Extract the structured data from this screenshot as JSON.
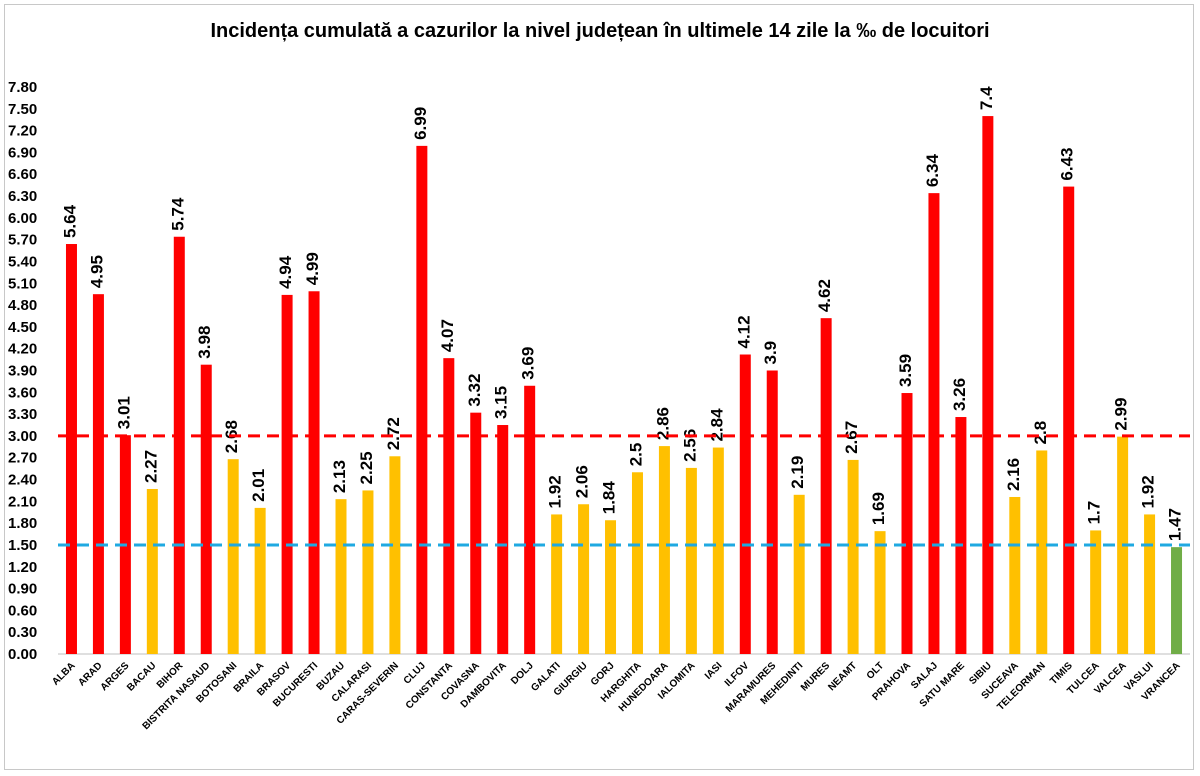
{
  "chart_data": {
    "type": "bar",
    "title": "Incidența cumulată a cazurilor la nivel județean în ultimele 14 zile la ‰ de locuitori",
    "xlabel": "",
    "ylabel": "",
    "ylim": [
      0,
      7.8
    ],
    "yticks": [
      "0.00",
      "0.30",
      "0.60",
      "0.90",
      "1.20",
      "1.50",
      "1.80",
      "2.10",
      "2.40",
      "2.70",
      "3.00",
      "3.30",
      "3.60",
      "3.90",
      "4.20",
      "4.50",
      "4.80",
      "5.10",
      "5.40",
      "5.70",
      "6.00",
      "6.30",
      "6.60",
      "6.90",
      "7.20",
      "7.50",
      "7.80"
    ],
    "categories": [
      "ALBA",
      "ARAD",
      "ARGES",
      "BACAU",
      "BIHOR",
      "BISTRITA NASAUD",
      "BOTOSANI",
      "BRAILA",
      "BRASOV",
      "BUCURESTI",
      "BUZAU",
      "CALARASI",
      "CARAS-SEVERIN",
      "CLUJ",
      "CONSTANTA",
      "COVASNA",
      "DAMBOVITA",
      "DOLJ",
      "GALATI",
      "GIURGIU",
      "GORJ",
      "HARGHITA",
      "HUNEDOARA",
      "IALOMITA",
      "IASI",
      "ILFOV",
      "MARAMURES",
      "MEHEDINTI",
      "MURES",
      "NEAMT",
      "OLT",
      "PRAHOVA",
      "SALAJ",
      "SATU MARE",
      "SIBIU",
      "SUCEAVA",
      "TELEORMAN",
      "TIMIS",
      "TULCEA",
      "VALCEA",
      "VASLUI",
      "VRANCEA"
    ],
    "values": [
      5.64,
      4.95,
      3.01,
      2.27,
      5.74,
      3.98,
      2.68,
      2.01,
      4.94,
      4.99,
      2.13,
      2.25,
      2.72,
      6.99,
      4.07,
      3.32,
      3.15,
      3.69,
      1.92,
      2.06,
      1.84,
      2.5,
      2.86,
      2.56,
      2.84,
      4.12,
      3.9,
      2.19,
      4.62,
      2.67,
      1.69,
      3.59,
      6.34,
      3.26,
      7.4,
      2.16,
      2.8,
      6.43,
      1.7,
      2.99,
      1.92,
      1.47
    ],
    "data_labels": [
      "5.64",
      "4.95",
      "3.01",
      "2.27",
      "5.74",
      "3.98",
      "2.68",
      "2.01",
      "4.94",
      "4.99",
      "2.13",
      "2.25",
      "2.72",
      "6.99",
      "4.07",
      "3.32",
      "3.15",
      "3.69",
      "1.92",
      "2.06",
      "1.84",
      "2.5",
      "2.86",
      "2.56",
      "2.84",
      "4.12",
      "3.9",
      "2.19",
      "4.62",
      "2.67",
      "1.69",
      "3.59",
      "6.34",
      "3.26",
      "7.4",
      "2.16",
      "2.8",
      "6.43",
      "1.7",
      "2.99",
      "1.92",
      "1.47"
    ],
    "thresholds": [
      {
        "value": 3.0,
        "color": "#ff0000",
        "style": "dashed"
      },
      {
        "value": 1.5,
        "color": "#1fa9e1",
        "style": "dashed"
      }
    ],
    "colors": {
      "above_3": "#ff0000",
      "between_1_5_and_3": "#ffc000",
      "below_1_5": "#70ad47"
    },
    "grid": false,
    "legend": "none"
  }
}
